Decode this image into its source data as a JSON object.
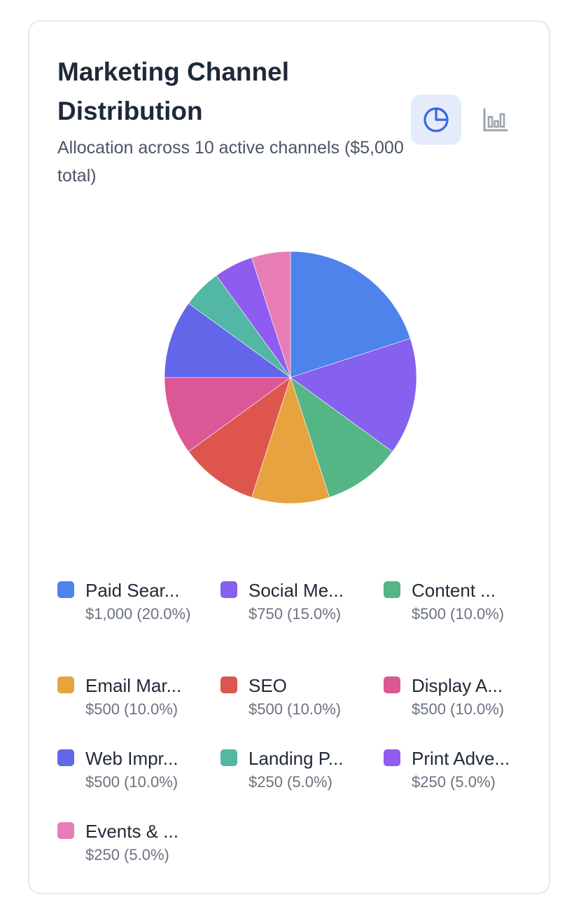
{
  "card": {
    "title": "Marketing Channel Distribution",
    "subtitle": "Allocation across 10 active channels ($5,000 total)"
  },
  "toggles": [
    {
      "icon": "pie-chart-icon",
      "active": true,
      "color": "#3b66e0"
    },
    {
      "icon": "bar-chart-icon",
      "active": false,
      "color": "#9ca3af"
    }
  ],
  "chart_data": {
    "type": "pie",
    "categories": [
      "Paid Search",
      "Social Media",
      "Content Marketing",
      "Email Marketing",
      "SEO",
      "Display Ads",
      "Web Improvements",
      "Landing Pages",
      "Print Advertising",
      "Events & Sponsorships"
    ],
    "values": [
      1000,
      750,
      500,
      500,
      500,
      500,
      500,
      250,
      250,
      250
    ],
    "colors": [
      "#4f83ec",
      "#8660ef",
      "#55b685",
      "#e8a33f",
      "#dd554d",
      "#db5796",
      "#6366e9",
      "#52b7a5",
      "#8e5cf0",
      "#e87db5"
    ]
  },
  "legend": [
    {
      "name": "Paid Sear...",
      "value": "$1,000 (20.0%)"
    },
    {
      "name": "Social Me...",
      "value": "$750 (15.0%)"
    },
    {
      "name": "Content ...",
      "value": "$500 (10.0%)"
    },
    {
      "name": "Email Mar...",
      "value": "$500 (10.0%)"
    },
    {
      "name": "SEO",
      "value": "$500 (10.0%)"
    },
    {
      "name": "Display A...",
      "value": "$500 (10.0%)"
    },
    {
      "name": "Web Impr...",
      "value": "$500 (10.0%)"
    },
    {
      "name": "Landing P...",
      "value": "$250 (5.0%)"
    },
    {
      "name": "Print Adve...",
      "value": "$250 (5.0%)"
    },
    {
      "name": "Events & ...",
      "value": "$250 (5.0%)"
    }
  ]
}
